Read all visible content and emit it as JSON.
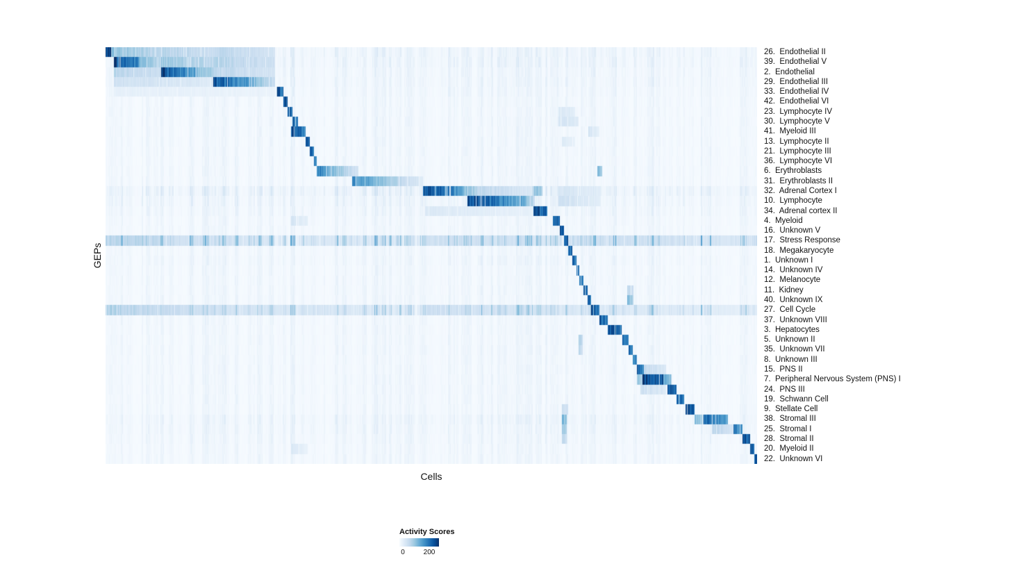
{
  "chart_data": {
    "type": "heatmap",
    "title": "",
    "xlabel": "Cells",
    "ylabel": "GEPs",
    "grid": false,
    "colormap": "Blues",
    "colormap_stops": [
      "#f7fbff",
      "#deebf7",
      "#c6dbef",
      "#9ecae1",
      "#6baed6",
      "#4292c6",
      "#2171b5",
      "#08519c",
      "#08306b"
    ],
    "colorbar": {
      "title": "Activity Scores",
      "tick_labels": [
        "0",
        "200"
      ],
      "ticks": [
        0,
        200
      ],
      "position": "bottom"
    },
    "value_note": "segment intensities are normalized activity (1.0 = max of colorbar); segments are [x_start_frac, x_end_frac, intensity_start, intensity_end] along the cells axis",
    "rows": [
      {
        "label": "26.  Endothelial II",
        "base": 0.05,
        "segments": [
          [
            0.0,
            0.008,
            1.0,
            1.0
          ],
          [
            0.008,
            0.085,
            0.42,
            0.28
          ],
          [
            0.085,
            0.165,
            0.32,
            0.22
          ],
          [
            0.165,
            0.26,
            0.28,
            0.18
          ]
        ]
      },
      {
        "label": "39.  Endothelial V",
        "base": 0.05,
        "segments": [
          [
            0.012,
            0.052,
            0.95,
            0.65
          ],
          [
            0.052,
            0.085,
            0.45,
            0.3
          ],
          [
            0.085,
            0.165,
            0.4,
            0.28
          ],
          [
            0.165,
            0.26,
            0.32,
            0.2
          ]
        ]
      },
      {
        "label": "2.  Endothelial",
        "base": 0.04,
        "segments": [
          [
            0.012,
            0.085,
            0.3,
            0.22
          ],
          [
            0.085,
            0.14,
            0.95,
            0.55
          ],
          [
            0.14,
            0.165,
            0.45,
            0.32
          ],
          [
            0.165,
            0.26,
            0.28,
            0.18
          ]
        ]
      },
      {
        "label": "29.  Endothelial III",
        "base": 0.04,
        "segments": [
          [
            0.012,
            0.165,
            0.2,
            0.14
          ],
          [
            0.165,
            0.23,
            0.92,
            0.5
          ],
          [
            0.23,
            0.26,
            0.4,
            0.25
          ]
        ]
      },
      {
        "label": "33.  Endothelial IV",
        "base": 0.035,
        "segments": [
          [
            0.012,
            0.26,
            0.09,
            0.06
          ],
          [
            0.262,
            0.272,
            0.95,
            0.8
          ]
        ]
      },
      {
        "label": "42.  Endothelial VI",
        "base": 0.03,
        "segments": [
          [
            0.272,
            0.279,
            0.9,
            0.82
          ]
        ]
      },
      {
        "label": "23.  Lymphocyte IV",
        "base": 0.03,
        "segments": [
          [
            0.279,
            0.286,
            0.88,
            0.78
          ],
          [
            0.695,
            0.72,
            0.16,
            0.1
          ]
        ]
      },
      {
        "label": "30.  Lymphocyte V",
        "base": 0.03,
        "segments": [
          [
            0.286,
            0.295,
            0.85,
            0.7
          ],
          [
            0.695,
            0.725,
            0.2,
            0.12
          ]
        ]
      },
      {
        "label": "41.  Myeloid III",
        "base": 0.03,
        "segments": [
          [
            0.284,
            0.307,
            0.92,
            0.72
          ],
          [
            0.74,
            0.757,
            0.18,
            0.1
          ]
        ]
      },
      {
        "label": "13.  Lymphocyte II",
        "base": 0.03,
        "segments": [
          [
            0.307,
            0.313,
            0.85,
            0.75
          ],
          [
            0.7,
            0.72,
            0.14,
            0.08
          ]
        ]
      },
      {
        "label": "21.  Lymphocyte III",
        "base": 0.03,
        "segments": [
          [
            0.313,
            0.319,
            0.84,
            0.74
          ]
        ]
      },
      {
        "label": "36.  Lymphocyte VI",
        "base": 0.03,
        "segments": [
          [
            0.319,
            0.324,
            0.8,
            0.7
          ]
        ]
      },
      {
        "label": "6.  Erythroblasts",
        "base": 0.03,
        "segments": [
          [
            0.324,
            0.35,
            0.72,
            0.45
          ],
          [
            0.35,
            0.387,
            0.42,
            0.18
          ],
          [
            0.754,
            0.762,
            0.5,
            0.38
          ]
        ]
      },
      {
        "label": "31.  Erythroblasts II",
        "base": 0.03,
        "segments": [
          [
            0.378,
            0.43,
            0.65,
            0.4
          ],
          [
            0.43,
            0.487,
            0.38,
            0.12
          ]
        ]
      },
      {
        "label": "32.  Adrenal Cortex I",
        "base": 0.07,
        "segments": [
          [
            0.487,
            0.547,
            0.95,
            0.58
          ],
          [
            0.547,
            0.57,
            0.48,
            0.32
          ],
          [
            0.57,
            0.655,
            0.28,
            0.14
          ],
          [
            0.655,
            0.67,
            0.45,
            0.35
          ],
          [
            0.695,
            0.76,
            0.18,
            0.1
          ]
        ]
      },
      {
        "label": "10.  Lymphocyte",
        "base": 0.05,
        "segments": [
          [
            0.555,
            0.645,
            0.97,
            0.5
          ],
          [
            0.645,
            0.658,
            0.38,
            0.28
          ],
          [
            0.695,
            0.76,
            0.22,
            0.1
          ]
        ]
      },
      {
        "label": "34.  Adrenal cortex II",
        "base": 0.04,
        "segments": [
          [
            0.49,
            0.655,
            0.14,
            0.08
          ],
          [
            0.656,
            0.678,
            0.95,
            0.75
          ]
        ]
      },
      {
        "label": "4.  Myeloid",
        "base": 0.03,
        "segments": [
          [
            0.284,
            0.31,
            0.18,
            0.1
          ],
          [
            0.686,
            0.697,
            0.9,
            0.78
          ]
        ]
      },
      {
        "label": "16.  Unknown V",
        "base": 0.03,
        "segments": [
          [
            0.697,
            0.703,
            0.85,
            0.78
          ]
        ]
      },
      {
        "label": "17.  Stress Response",
        "base": 0.2,
        "segments": [
          [
            0.0,
            0.09,
            0.32,
            0.24
          ],
          [
            0.09,
            0.26,
            0.22,
            0.16
          ],
          [
            0.3,
            0.47,
            0.16,
            0.12
          ],
          [
            0.49,
            0.7,
            0.22,
            0.15
          ],
          [
            0.703,
            0.71,
            0.9,
            0.82
          ],
          [
            0.71,
            1.0,
            0.22,
            0.16
          ]
        ]
      },
      {
        "label": "18.  Megakaryocyte",
        "base": 0.03,
        "segments": [
          [
            0.71,
            0.716,
            0.85,
            0.78
          ]
        ]
      },
      {
        "label": "1.  Unknown I",
        "base": 0.035,
        "segments": [
          [
            0.716,
            0.722,
            0.8,
            0.73
          ]
        ]
      },
      {
        "label": "14.  Unknown IV",
        "base": 0.03,
        "segments": [
          [
            0.722,
            0.727,
            0.8,
            0.72
          ]
        ]
      },
      {
        "label": "12.  Melanocyte",
        "base": 0.03,
        "segments": [
          [
            0.727,
            0.733,
            0.85,
            0.75
          ]
        ]
      },
      {
        "label": "11.  Kidney",
        "base": 0.03,
        "segments": [
          [
            0.733,
            0.739,
            0.85,
            0.75
          ],
          [
            0.8,
            0.81,
            0.3,
            0.2
          ]
        ]
      },
      {
        "label": "40.  Unknown IX",
        "base": 0.03,
        "segments": [
          [
            0.739,
            0.745,
            0.85,
            0.75
          ],
          [
            0.8,
            0.81,
            0.45,
            0.32
          ]
        ]
      },
      {
        "label": "27.  Cell Cycle",
        "base": 0.16,
        "segments": [
          [
            0.0,
            0.065,
            0.35,
            0.25
          ],
          [
            0.065,
            0.3,
            0.25,
            0.15
          ],
          [
            0.3,
            0.47,
            0.18,
            0.1
          ],
          [
            0.49,
            0.74,
            0.22,
            0.14
          ],
          [
            0.745,
            0.757,
            0.88,
            0.78
          ],
          [
            0.757,
            1.0,
            0.14,
            0.1
          ]
        ]
      },
      {
        "label": "37.  Unknown VIII",
        "base": 0.03,
        "segments": [
          [
            0.757,
            0.77,
            0.88,
            0.72
          ]
        ]
      },
      {
        "label": "3.  Hepatocytes",
        "base": 0.03,
        "segments": [
          [
            0.77,
            0.792,
            0.95,
            0.78
          ]
        ]
      },
      {
        "label": "5.  Unknown II",
        "base": 0.03,
        "segments": [
          [
            0.726,
            0.732,
            0.35,
            0.25
          ],
          [
            0.793,
            0.802,
            0.85,
            0.75
          ]
        ]
      },
      {
        "label": "35.  Unknown VII",
        "base": 0.03,
        "segments": [
          [
            0.726,
            0.732,
            0.28,
            0.2
          ],
          [
            0.802,
            0.809,
            0.82,
            0.72
          ]
        ]
      },
      {
        "label": "8.  Unknown III",
        "base": 0.03,
        "segments": [
          [
            0.809,
            0.815,
            0.8,
            0.7
          ]
        ]
      },
      {
        "label": "15.  PNS II",
        "base": 0.03,
        "segments": [
          [
            0.815,
            0.827,
            0.85,
            0.68
          ],
          [
            0.827,
            0.86,
            0.25,
            0.15
          ]
        ]
      },
      {
        "label": "7.  Peripheral Nervous System (PNS) I",
        "base": 0.03,
        "segments": [
          [
            0.815,
            0.824,
            0.4,
            0.3
          ],
          [
            0.824,
            0.856,
            0.97,
            0.85
          ],
          [
            0.856,
            0.868,
            0.55,
            0.38
          ]
        ]
      },
      {
        "label": "24.  PNS III",
        "base": 0.03,
        "segments": [
          [
            0.82,
            0.86,
            0.22,
            0.14
          ],
          [
            0.862,
            0.876,
            0.9,
            0.78
          ]
        ]
      },
      {
        "label": "19.  Schwann Cell",
        "base": 0.03,
        "segments": [
          [
            0.876,
            0.887,
            0.85,
            0.72
          ]
        ]
      },
      {
        "label": "9.  Stellate Cell",
        "base": 0.03,
        "segments": [
          [
            0.7,
            0.71,
            0.25,
            0.18
          ],
          [
            0.89,
            0.903,
            0.95,
            0.82
          ]
        ]
      },
      {
        "label": "38.  Stromal III",
        "base": 0.045,
        "segments": [
          [
            0.7,
            0.707,
            0.5,
            0.4
          ],
          [
            0.903,
            0.917,
            0.45,
            0.35
          ],
          [
            0.917,
            0.955,
            0.85,
            0.55
          ]
        ]
      },
      {
        "label": "25.  Stromal I",
        "base": 0.04,
        "segments": [
          [
            0.7,
            0.707,
            0.4,
            0.3
          ],
          [
            0.93,
            0.962,
            0.3,
            0.2
          ],
          [
            0.963,
            0.977,
            0.8,
            0.62
          ]
        ]
      },
      {
        "label": "28.  Stromal II",
        "base": 0.035,
        "segments": [
          [
            0.7,
            0.707,
            0.3,
            0.22
          ],
          [
            0.977,
            0.989,
            0.95,
            0.85
          ]
        ]
      },
      {
        "label": "20.  Myeloid II",
        "base": 0.03,
        "segments": [
          [
            0.284,
            0.31,
            0.14,
            0.08
          ],
          [
            0.989,
            0.995,
            0.9,
            0.8
          ]
        ]
      },
      {
        "label": "22.  Unknown VI",
        "base": 0.03,
        "segments": [
          [
            0.995,
            1.0,
            0.9,
            0.85
          ]
        ]
      }
    ]
  }
}
